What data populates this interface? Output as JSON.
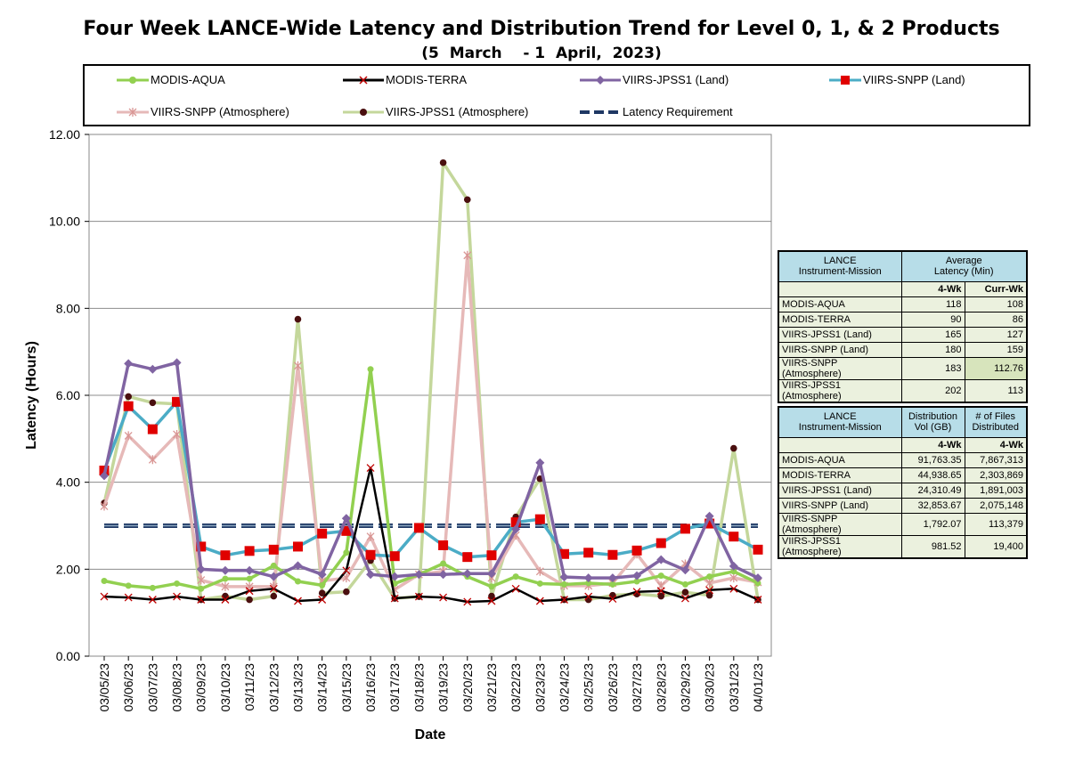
{
  "title": "Four Week LANCE-Wide Latency and Distribution Trend for Level 0, 1, & 2 Products",
  "subtitle": "(5  March    - 1  April,  2023)",
  "chart_data": {
    "type": "line",
    "xlabel": "Date",
    "ylabel": "Latency (Hours)",
    "ylim": [
      0,
      12
    ],
    "yticks": [
      "0.00",
      "2.00",
      "4.00",
      "6.00",
      "8.00",
      "10.00",
      "12.00"
    ],
    "grid": true,
    "legend_position": "top",
    "categories": [
      "03/05/23",
      "03/06/23",
      "03/07/23",
      "03/08/23",
      "03/09/23",
      "03/10/23",
      "03/11/23",
      "03/12/23",
      "03/13/23",
      "03/14/23",
      "03/15/23",
      "03/16/23",
      "03/17/23",
      "03/18/23",
      "03/19/23",
      "03/20/23",
      "03/21/23",
      "03/22/23",
      "03/23/23",
      "03/24/23",
      "03/25/23",
      "03/26/23",
      "03/27/23",
      "03/28/23",
      "03/29/23",
      "03/30/23",
      "03/31/23",
      "04/01/23"
    ],
    "latency_requirement": 3.0,
    "series": [
      {
        "name": "MODIS-AQUA",
        "color": "#92d050",
        "marker": "circle",
        "values": [
          1.73,
          1.62,
          1.57,
          1.67,
          1.55,
          1.78,
          1.78,
          2.08,
          1.72,
          1.63,
          2.38,
          6.6,
          1.67,
          1.88,
          2.13,
          1.83,
          1.6,
          1.83,
          1.67,
          1.65,
          1.68,
          1.65,
          1.72,
          1.85,
          1.65,
          1.83,
          1.95,
          1.68
        ]
      },
      {
        "name": "MODIS-TERRA",
        "color": "#000000",
        "marker": "x",
        "values": [
          1.37,
          1.35,
          1.3,
          1.37,
          1.3,
          1.3,
          1.5,
          1.55,
          1.27,
          1.3,
          1.97,
          4.33,
          1.33,
          1.37,
          1.35,
          1.25,
          1.27,
          1.55,
          1.27,
          1.3,
          1.37,
          1.32,
          1.48,
          1.5,
          1.33,
          1.52,
          1.55,
          1.3
        ]
      },
      {
        "name": "VIIRS-JPSS1 (Land)",
        "color": "#8064a2",
        "marker": "diamond",
        "values": [
          4.15,
          6.73,
          6.6,
          6.75,
          2.0,
          1.97,
          1.97,
          1.83,
          2.08,
          1.88,
          3.17,
          1.88,
          1.83,
          1.88,
          1.88,
          1.9,
          1.9,
          2.92,
          4.45,
          1.82,
          1.8,
          1.8,
          1.85,
          2.22,
          1.98,
          3.22,
          2.07,
          1.8
        ]
      },
      {
        "name": "VIIRS-SNPP (Land)",
        "color": "#4bacc6",
        "marker": "square",
        "values": [
          4.27,
          5.75,
          5.22,
          5.85,
          2.52,
          2.32,
          2.42,
          2.45,
          2.52,
          2.82,
          2.88,
          2.33,
          2.3,
          2.95,
          2.55,
          2.28,
          2.32,
          3.08,
          3.15,
          2.35,
          2.38,
          2.33,
          2.43,
          2.6,
          2.93,
          3.05,
          2.75,
          2.45
        ]
      },
      {
        "name": "VIIRS-SNPP (Atmosphere)",
        "color": "#e6b9b8",
        "marker": "star",
        "values": [
          3.45,
          5.07,
          4.52,
          5.1,
          1.75,
          1.6,
          1.6,
          1.6,
          6.68,
          1.73,
          1.8,
          2.75,
          1.53,
          1.88,
          1.95,
          9.22,
          1.8,
          2.78,
          1.95,
          1.62,
          1.62,
          1.68,
          2.35,
          1.62,
          2.12,
          1.68,
          1.8,
          1.7
        ]
      },
      {
        "name": "VIIRS-JPSS1 (Atmosphere)",
        "color": "#c4d79b",
        "marker": "dot",
        "values": [
          3.52,
          5.97,
          5.83,
          5.8,
          1.3,
          1.38,
          1.3,
          1.38,
          7.75,
          1.45,
          1.48,
          2.2,
          1.33,
          1.37,
          11.35,
          10.5,
          1.38,
          3.2,
          4.08,
          1.3,
          1.3,
          1.4,
          1.43,
          1.38,
          1.47,
          1.4,
          4.78,
          1.3
        ]
      }
    ]
  },
  "legend": [
    {
      "label": "MODIS-AQUA",
      "key": "aqua"
    },
    {
      "label": "MODIS-TERRA",
      "key": "terra"
    },
    {
      "label": "VIIRS-JPSS1 (Land)",
      "key": "j1land"
    },
    {
      "label": "VIIRS-SNPP (Land)",
      "key": "snppland"
    },
    {
      "label": "VIIRS-SNPP (Atmosphere)",
      "key": "snppatm"
    },
    {
      "label": "VIIRS-JPSS1 (Atmosphere)",
      "key": "j1atm"
    },
    {
      "label": "Latency Requirement",
      "key": "req"
    }
  ],
  "latency_table": {
    "h1": "LANCE",
    "h1b": "Instrument-Mission",
    "h2": "Average",
    "h2b": "Latency (Min)",
    "c1": "4-Wk",
    "c2": "Curr-Wk",
    "rows": [
      [
        "MODIS-AQUA",
        "118",
        "108"
      ],
      [
        "MODIS-TERRA",
        "90",
        "86"
      ],
      [
        "VIIRS-JPSS1 (Land)",
        "165",
        "127"
      ],
      [
        "VIIRS-SNPP (Land)",
        "180",
        "159"
      ],
      [
        "VIIRS-SNPP (Atmosphere)",
        "183",
        "112.76"
      ],
      [
        "VIIRS-JPSS1 (Atmosphere)",
        "202",
        "113"
      ]
    ]
  },
  "dist_table": {
    "h1": "LANCE",
    "h1b": "Instrument-Mission",
    "h2": "Distribution",
    "h2b": "Vol (GB)",
    "h3": "# of Files",
    "h3b": "Distributed",
    "c1": "4-Wk",
    "c2": "4-Wk",
    "rows": [
      [
        "MODIS-AQUA",
        "91,763.35",
        "7,867,313"
      ],
      [
        "MODIS-TERRA",
        "44,938.65",
        "2,303,869"
      ],
      [
        "VIIRS-JPSS1 (Land)",
        "24,310.49",
        "1,891,003"
      ],
      [
        "VIIRS-SNPP (Land)",
        "32,853.67",
        "2,075,148"
      ],
      [
        "VIIRS-SNPP (Atmosphere)",
        "1,792.07",
        "113,379"
      ],
      [
        "VIIRS-JPSS1 (Atmosphere)",
        "981.52",
        "19,400"
      ]
    ]
  }
}
